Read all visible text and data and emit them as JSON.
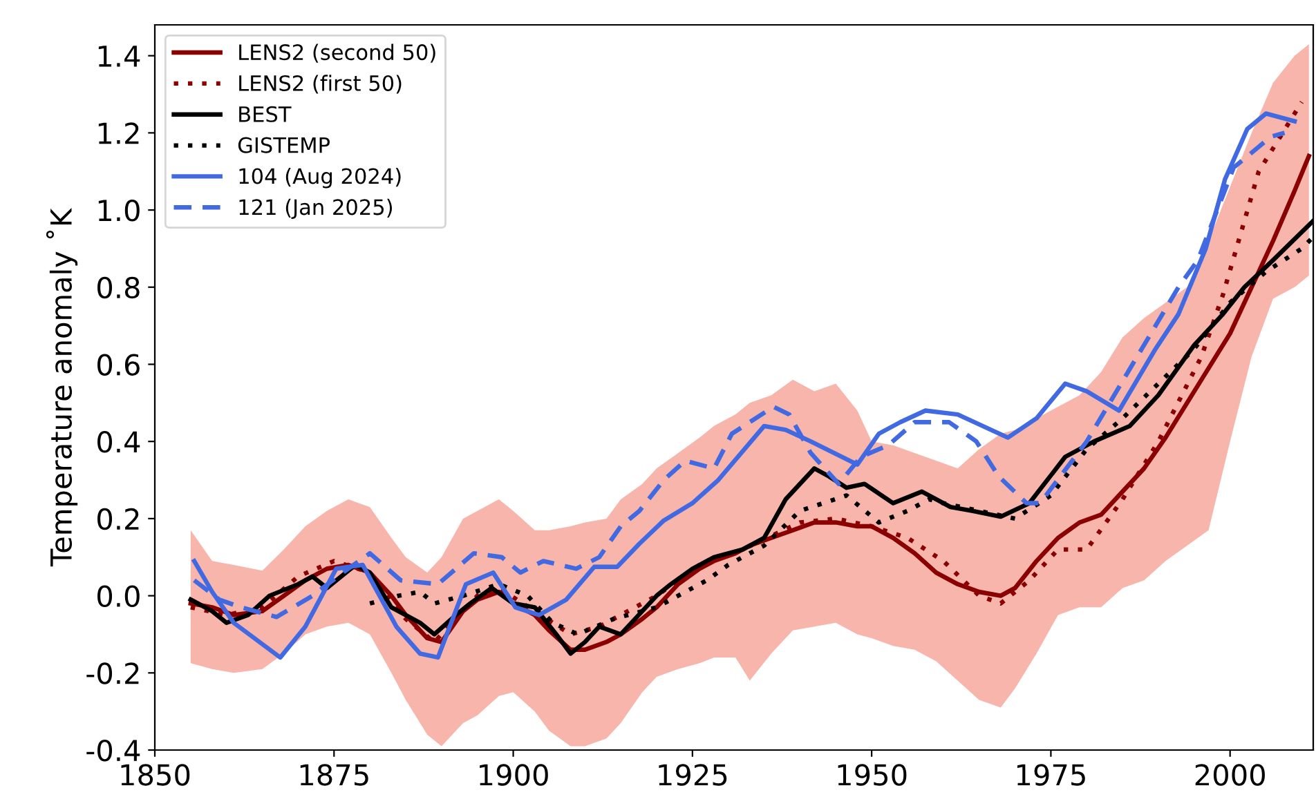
{
  "chart_data": {
    "type": "line",
    "ylabel": "Temperature anomaly ˚K",
    "xlim": [
      1850,
      2011.6
    ],
    "xticks": [
      1850,
      1875,
      1900,
      1925,
      1950,
      1975,
      2000
    ],
    "ylim": [
      -0.4,
      1.48
    ],
    "yticks": [
      {
        "value": -0.4,
        "label": "-0.4"
      },
      {
        "value": -0.2,
        "label": "-0.2"
      },
      {
        "value": 0,
        "label": "0.0"
      },
      {
        "value": 0.2,
        "label": "0.2"
      },
      {
        "value": 0.4,
        "label": "0.4"
      },
      {
        "value": 0.6,
        "label": "0.6"
      },
      {
        "value": 0.8,
        "label": "0.8"
      },
      {
        "value": 1.0,
        "label": "1.0"
      },
      {
        "value": 1.2,
        "label": "1.2"
      },
      {
        "value": 1.4,
        "label": "1.4"
      }
    ],
    "grid": false,
    "legend": "top left",
    "series": [
      {
        "name": "LENS2 (second 50)",
        "color": "#8b0000",
        "line_style": "solid",
        "x": [
          1855,
          1858,
          1861,
          1865,
          1868,
          1871,
          1874,
          1877,
          1880,
          1883,
          1885,
          1888,
          1890,
          1893,
          1895,
          1898,
          1900,
          1903,
          1905,
          1908,
          1910,
          1913,
          1915,
          1918,
          1920,
          1923,
          1926,
          1928,
          1931,
          1933,
          1936,
          1939,
          1942,
          1945,
          1948,
          1950,
          1953,
          1956,
          1959,
          1962,
          1965,
          1968,
          1970,
          1973,
          1976,
          1979,
          1982,
          1985,
          1988,
          1991,
          1994,
          1997,
          2000,
          2003,
          2006,
          2009,
          2011
        ],
        "values": [
          -0.02,
          -0.03,
          -0.05,
          -0.04,
          0.0,
          0.04,
          0.07,
          0.08,
          0.06,
          0.0,
          -0.05,
          -0.11,
          -0.12,
          -0.04,
          -0.01,
          0.01,
          -0.02,
          -0.05,
          -0.09,
          -0.14,
          -0.14,
          -0.12,
          -0.1,
          -0.06,
          -0.03,
          0.03,
          0.07,
          0.09,
          0.11,
          0.13,
          0.15,
          0.17,
          0.19,
          0.19,
          0.18,
          0.18,
          0.15,
          0.11,
          0.06,
          0.03,
          0.01,
          0.0,
          0.02,
          0.09,
          0.15,
          0.19,
          0.21,
          0.27,
          0.33,
          0.41,
          0.5,
          0.59,
          0.68,
          0.8,
          0.92,
          1.05,
          1.14
        ],
        "upper": [
          0.17,
          0.09,
          0.08,
          0.065,
          0.12,
          0.18,
          0.22,
          0.25,
          0.23,
          0.15,
          0.1,
          0.06,
          0.1,
          0.2,
          0.22,
          0.25,
          0.22,
          0.17,
          0.17,
          0.18,
          0.19,
          0.2,
          0.25,
          0.29,
          0.33,
          0.37,
          0.41,
          0.44,
          0.47,
          0.5,
          0.52,
          0.56,
          0.53,
          0.55,
          0.48,
          0.4,
          0.39,
          0.37,
          0.35,
          0.33,
          0.38,
          0.42,
          0.43,
          0.46,
          0.49,
          0.52,
          0.58,
          0.67,
          0.72,
          0.76,
          0.8,
          0.92,
          1.06,
          1.2,
          1.33,
          1.4,
          1.43
        ],
        "lower": [
          -0.175,
          -0.19,
          -0.2,
          -0.19,
          -0.15,
          -0.1,
          -0.08,
          -0.07,
          -0.1,
          -0.2,
          -0.27,
          -0.36,
          -0.39,
          -0.33,
          -0.31,
          -0.26,
          -0.25,
          -0.3,
          -0.35,
          -0.39,
          -0.39,
          -0.37,
          -0.33,
          -0.25,
          -0.21,
          -0.19,
          -0.175,
          -0.16,
          -0.16,
          -0.22,
          -0.15,
          -0.09,
          -0.08,
          -0.07,
          -0.1,
          -0.11,
          -0.13,
          -0.14,
          -0.17,
          -0.22,
          -0.27,
          -0.29,
          -0.24,
          -0.15,
          -0.05,
          -0.03,
          -0.03,
          0.02,
          0.04,
          0.09,
          0.13,
          0.17,
          0.4,
          0.62,
          0.77,
          0.8,
          0.83
        ]
      },
      {
        "name": "LENS2 (first 50)",
        "color": "#8b0000",
        "line_style": "dotted",
        "x": [
          1855,
          1860,
          1865,
          1870,
          1875,
          1880,
          1885,
          1889,
          1895,
          1898,
          1903,
          1908,
          1912,
          1920,
          1926,
          1932,
          1940,
          1945,
          1950,
          1955,
          1960,
          1965,
          1968,
          1972,
          1976,
          1980,
          1985,
          1990,
          1996,
          1999,
          2004,
          2010
        ],
        "values": [
          -0.03,
          -0.05,
          -0.03,
          0.05,
          0.09,
          0.06,
          -0.06,
          -0.12,
          0.0,
          0.02,
          -0.04,
          -0.1,
          -0.08,
          0.0,
          0.08,
          0.12,
          0.19,
          0.2,
          0.18,
          0.15,
          0.09,
          0.0,
          -0.02,
          0.04,
          0.12,
          0.12,
          0.25,
          0.4,
          0.62,
          0.78,
          1.1,
          1.28
        ]
      },
      {
        "name": "BEST",
        "color": "#000000",
        "line_style": "solid",
        "x": [
          1855,
          1858,
          1860,
          1863,
          1866,
          1870,
          1872,
          1874,
          1878,
          1880,
          1883,
          1887,
          1889,
          1892,
          1894,
          1897,
          1900,
          1903,
          1906,
          1908,
          1910,
          1912,
          1915,
          1920,
          1922,
          1925,
          1928,
          1932,
          1935,
          1938,
          1942,
          1944,
          1946.5,
          1949,
          1953,
          1957,
          1961,
          1964,
          1968,
          1972,
          1977,
          1981,
          1986,
          1990,
          1995,
          1999,
          2002,
          2006,
          2011.5
        ],
        "values": [
          -0.01,
          -0.04,
          -0.07,
          -0.05,
          0.0,
          0.03,
          0.05,
          0.02,
          0.08,
          0.06,
          -0.03,
          -0.07,
          -0.1,
          -0.05,
          -0.02,
          0.02,
          -0.02,
          -0.03,
          -0.1,
          -0.15,
          -0.12,
          -0.08,
          -0.1,
          0.0,
          0.03,
          0.07,
          0.1,
          0.12,
          0.15,
          0.25,
          0.33,
          0.31,
          0.28,
          0.29,
          0.24,
          0.27,
          0.23,
          0.22,
          0.205,
          0.24,
          0.36,
          0.4,
          0.44,
          0.52,
          0.65,
          0.73,
          0.8,
          0.87,
          0.97
        ]
      },
      {
        "name": "GISTEMP",
        "color": "#000000",
        "line_style": "dotted",
        "x": [
          1880,
          1884,
          1887,
          1889,
          1893,
          1898,
          1902,
          1905.5,
          1909,
          1914,
          1920,
          1927,
          1930,
          1935,
          1940,
          1946.5,
          1951,
          1955,
          1958,
          1960,
          1965,
          1970,
          1975,
          1980,
          1985,
          1990,
          1995,
          2000,
          2005,
          2010,
          2011.6
        ],
        "values": [
          -0.02,
          0.0,
          0.01,
          -0.02,
          0.0,
          0.03,
          0.0,
          -0.07,
          -0.1,
          -0.06,
          -0.03,
          0.04,
          0.08,
          0.13,
          0.22,
          0.26,
          0.19,
          0.22,
          0.25,
          0.24,
          0.22,
          0.2,
          0.26,
          0.38,
          0.46,
          0.55,
          0.64,
          0.76,
          0.84,
          0.9,
          0.93
        ]
      },
      {
        "name": "104 (Aug 2024)",
        "color": "#4169e1",
        "line_style": "solid",
        "x": [
          1855.5,
          1858,
          1861,
          1867.5,
          1871,
          1875.3,
          1879,
          1883.7,
          1887,
          1889.5,
          1893.4,
          1897.2,
          1900.3,
          1903.6,
          1907.4,
          1911.3,
          1914.5,
          1917.6,
          1921,
          1925,
          1928.6,
          1935,
          1938,
          1941.5,
          1948,
          1951,
          1954,
          1957.5,
          1962,
          1969,
          1973,
          1977,
          1980,
          1984.5,
          1989.6,
          1992.8,
          1996.6,
          1999.3,
          2002.4,
          2005,
          2009
        ],
        "values": [
          0.09,
          0.01,
          -0.07,
          -0.16,
          -0.08,
          0.07,
          0.08,
          -0.08,
          -0.15,
          -0.16,
          0.03,
          0.06,
          -0.03,
          -0.05,
          -0.01,
          0.075,
          0.075,
          0.135,
          0.195,
          0.24,
          0.3,
          0.44,
          0.43,
          0.4,
          0.34,
          0.42,
          0.45,
          0.48,
          0.47,
          0.41,
          0.46,
          0.55,
          0.53,
          0.48,
          0.64,
          0.73,
          0.9,
          1.08,
          1.21,
          1.25,
          1.23
        ]
      },
      {
        "name": "121 (Jan 2025)",
        "color": "#4169e1",
        "line_style": "dashed",
        "x": [
          1855.5,
          1859,
          1862,
          1867,
          1872,
          1876.6,
          1880,
          1884.3,
          1889.5,
          1894.5,
          1898.4,
          1901,
          1904.2,
          1908.8,
          1912,
          1915,
          1917.6,
          1921,
          1924,
          1928,
          1930.5,
          1936.3,
          1938.5,
          1941.5,
          1945.4,
          1948.5,
          1952.3,
          1956,
          1960.8,
          1964.6,
          1967.7,
          1971.6,
          1973.5,
          1980,
          1986.4,
          1992.8,
          1995.5,
          2000.5,
          2005.7,
          2007.6
        ],
        "values": [
          0.04,
          -0.01,
          -0.03,
          -0.055,
          0.0,
          0.065,
          0.11,
          0.04,
          0.03,
          0.11,
          0.1,
          0.06,
          0.09,
          0.07,
          0.1,
          0.18,
          0.22,
          0.3,
          0.35,
          0.33,
          0.42,
          0.49,
          0.47,
          0.37,
          0.29,
          0.36,
          0.39,
          0.45,
          0.45,
          0.4,
          0.31,
          0.24,
          0.24,
          0.4,
          0.6,
          0.8,
          0.87,
          1.11,
          1.19,
          1.2
        ]
      }
    ]
  }
}
